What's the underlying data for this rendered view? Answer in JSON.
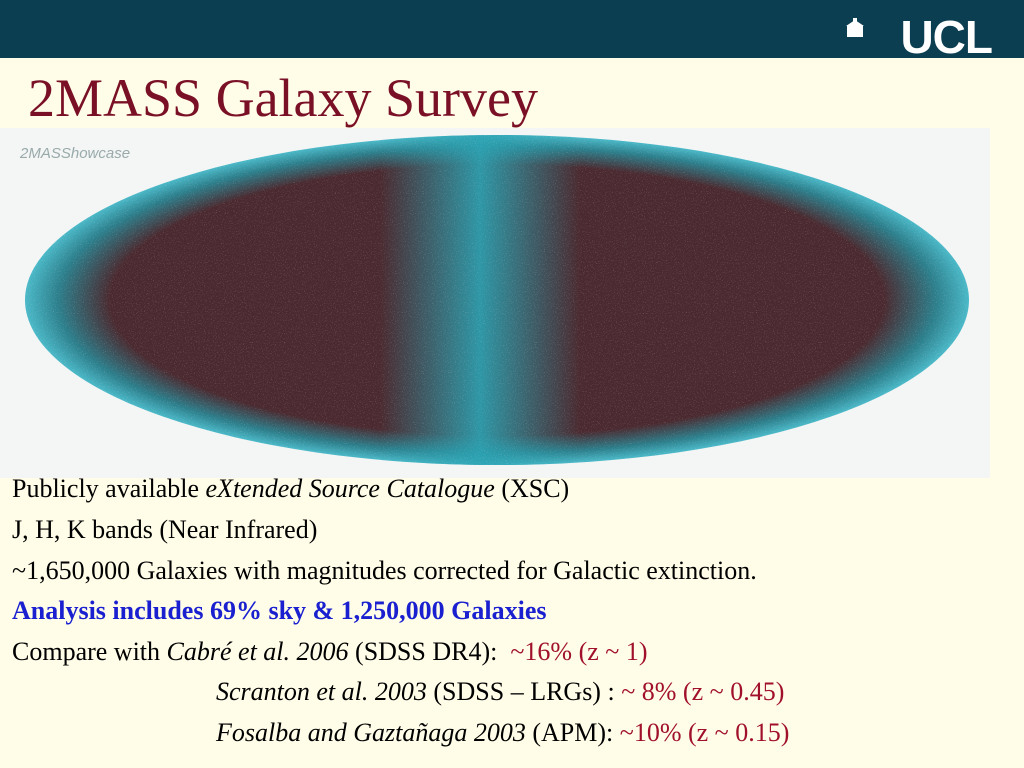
{
  "header": {
    "logo": "UCL"
  },
  "title": "2MASS Galaxy Survey",
  "image": {
    "label": "2MASShowcase"
  },
  "body": {
    "lines": [
      [
        "Publicly available ",
        "eXtended Source Catalogue",
        " (XSC)"
      ],
      [
        "J, H, K bands (Near Infrared)"
      ],
      [
        "~1,650,000 Galaxies with magnitudes corrected for Galactic extinction."
      ],
      [
        "Analysis includes 69% sky & 1,250,000 Galaxies"
      ],
      [
        "Compare with ",
        "Cabré et al. 2006",
        " (SDSS DR4):  ",
        "~16% (z ~ 1)"
      ],
      [
        "Scranton et al. 2003",
        " (SDSS – LRGs) : ",
        "~ 8% (z ~ 0.45)"
      ],
      [
        "Fosalba and Gaztañaga 2003",
        " (APM): ",
        "~10% (z ~ 0.15)"
      ]
    ]
  }
}
